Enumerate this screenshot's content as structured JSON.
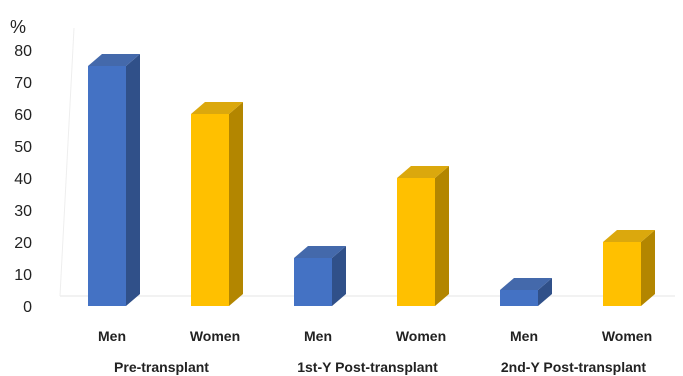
{
  "chart_data": {
    "type": "bar",
    "ylabel": "%",
    "ylim": [
      0,
      80
    ],
    "yticks": [
      0,
      10,
      20,
      30,
      40,
      50,
      60,
      70,
      80
    ],
    "grid": false,
    "categories": [
      "Men",
      "Women",
      "Men",
      "Women",
      "Men",
      "Women"
    ],
    "groups": [
      "Pre-transplant",
      "1st-Y Post-transplant",
      "2nd-Y Post-transplant"
    ],
    "values": [
      75,
      60,
      15,
      40,
      5,
      20
    ],
    "colors": [
      "#4472C4",
      "#FFC000",
      "#4472C4",
      "#FFC000",
      "#4472C4",
      "#FFC000"
    ]
  }
}
